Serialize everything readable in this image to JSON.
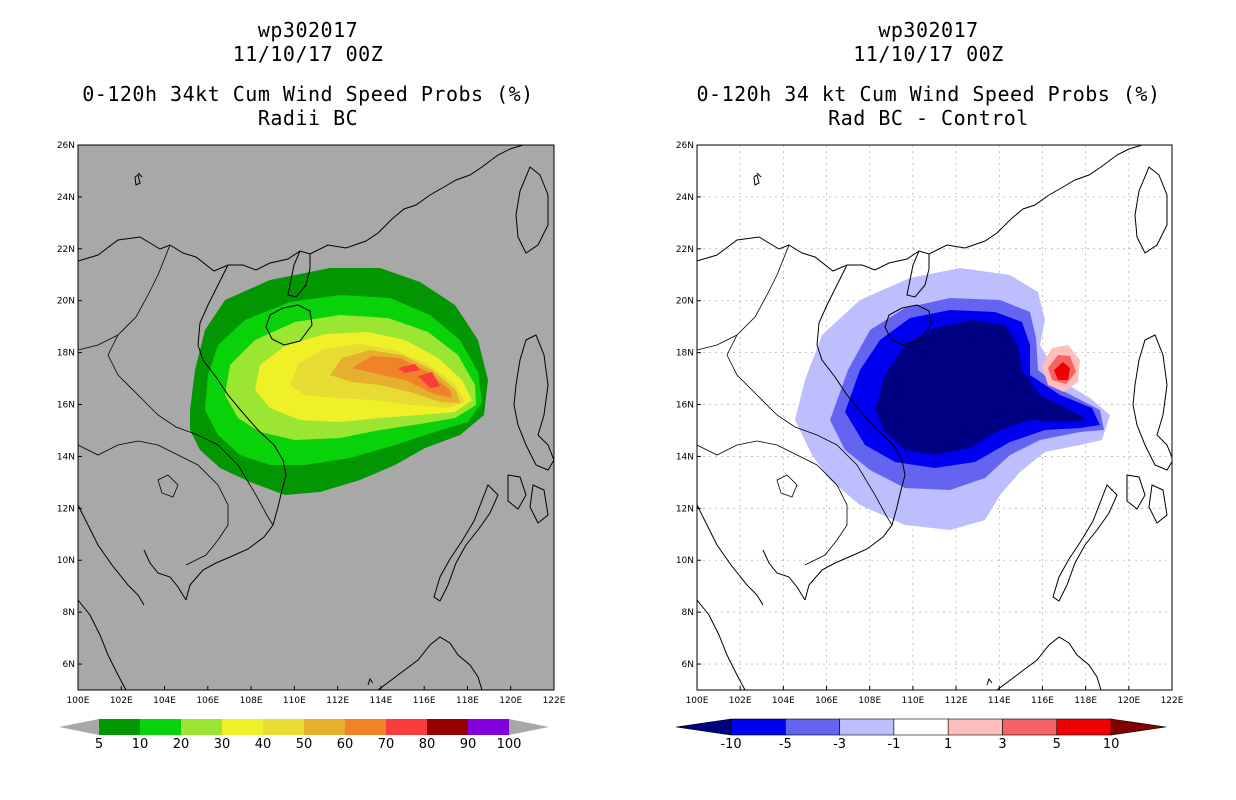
{
  "left_panel": {
    "title_line1": "wp302017",
    "title_line2": "11/10/17 00Z",
    "title_line3": "0-120h 34kt Cum Wind Speed Probs (%)",
    "title_line4": "Radii BC",
    "colors": {
      "background": "#a8a8a8",
      "c5": "#039603",
      "c10": "#0ad20a",
      "c20": "#9ae632",
      "c30": "#f0f028",
      "c40": "#e6dc32",
      "c50": "#e6af2d",
      "c60": "#f08228",
      "c70": "#fa3c3c",
      "c80": "#960000",
      "c90": "#8200dc"
    },
    "colorbar_labels": [
      "5",
      "10",
      "20",
      "30",
      "40",
      "50",
      "60",
      "70",
      "80",
      "90",
      "100"
    ]
  },
  "right_panel": {
    "title_line1": "wp302017",
    "title_line2": "11/10/17 00Z",
    "title_line3": "0-120h 34 kt Cum Wind Speed Probs (%)",
    "title_line4": "Rad BC - Control",
    "colors": {
      "lt10": "#000082",
      "n10": "#0000f0",
      "n5": "#6464f0",
      "n3": "#bebeff",
      "zero": "#ffffff",
      "p1": "#ffbebe",
      "p3": "#f56464",
      "p5": "#f00000",
      "gt10": "#820000"
    },
    "colorbar_labels": [
      "-10",
      "-5",
      "-3",
      "-1",
      "1",
      "3",
      "5",
      "10"
    ]
  },
  "axes": {
    "lat_labels": [
      "26N",
      "24N",
      "22N",
      "20N",
      "18N",
      "16N",
      "14N",
      "12N",
      "10N",
      "8N",
      "6N"
    ],
    "lon_labels": [
      "100E",
      "102E",
      "104E",
      "106E",
      "108E",
      "110E",
      "112E",
      "114E",
      "116E",
      "118E",
      "120E",
      "122E"
    ]
  }
}
